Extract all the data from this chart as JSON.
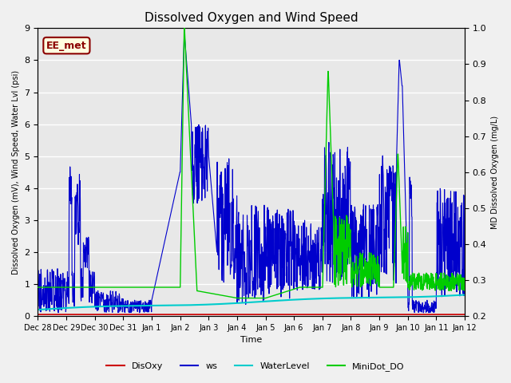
{
  "title": "Dissolved Oxygen and Wind Speed",
  "xlabel": "Time",
  "ylabel_left": "Dissolved Oxygen (mV), Wind Speed, Water Lvl (psi)",
  "ylabel_right": "MD Dissolved Oxygen (mg/L)",
  "ylim_left": [
    0.0,
    9.0
  ],
  "ylim_right": [
    0.2,
    1.0
  ],
  "annotation": "EE_met",
  "bg_color": "#e8e8e8",
  "colors": {
    "DisOxy": "#cc0000",
    "ws": "#0000cc",
    "WaterLevel": "#00cccc",
    "MiniDot_DO": "#00cc00"
  },
  "xtick_labels": [
    "Dec 28",
    "Dec 29",
    "Dec 30",
    "Dec 31",
    "Jan 1",
    "Jan 2",
    "Jan 3",
    "Jan 4",
    "Jan 5",
    "Jan 6",
    "Jan 7",
    "Jan 8",
    "Jan 9",
    "Jan 10",
    "Jan 11",
    "Jan 12"
  ],
  "n_days": 15
}
